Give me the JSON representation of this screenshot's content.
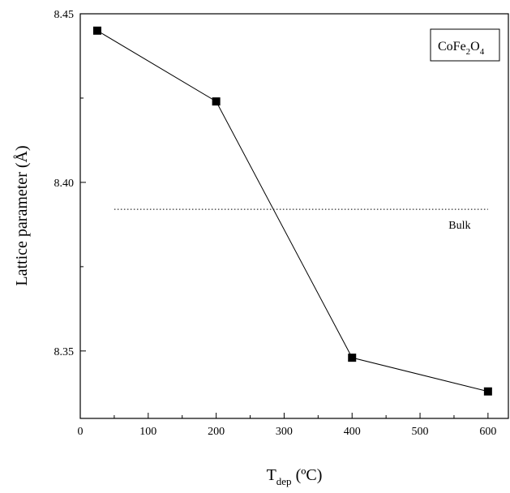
{
  "chart_data": {
    "type": "line",
    "xlabel": "T",
    "xlabel_subscript": "dep",
    "xlabel_unit": " (ºC)",
    "ylabel": "Lattice parameter (Å)",
    "xlim": [
      0,
      630
    ],
    "ylim": [
      8.33,
      8.45
    ],
    "x_ticks": [
      0,
      100,
      200,
      300,
      400,
      500,
      600
    ],
    "y_ticks": [
      8.35,
      8.4,
      8.45
    ],
    "x_tick_labels": [
      "0",
      "100",
      "200",
      "300",
      "400",
      "500",
      "600"
    ],
    "y_tick_labels": [
      "8.35",
      "8.40",
      "8.45"
    ],
    "series": [
      {
        "marker": "square",
        "color": "#000000",
        "x": [
          25,
          200,
          400,
          600
        ],
        "y": [
          8.445,
          8.424,
          8.348,
          8.338
        ]
      }
    ],
    "reference_line": {
      "label": "Bulk",
      "y": 8.392,
      "style": "dotted",
      "x_range": [
        50,
        600
      ]
    },
    "legend": {
      "main": "CoFe",
      "sub1": "2",
      "mid": "O",
      "sub2": "4",
      "position": "top-right"
    },
    "grid": false
  }
}
